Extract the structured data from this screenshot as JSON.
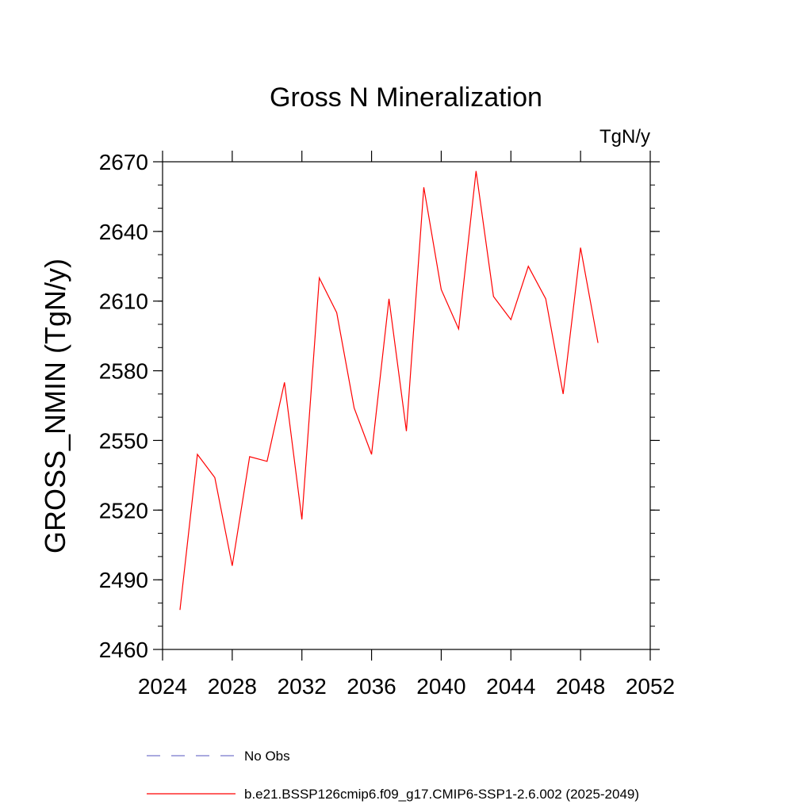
{
  "chart_data": {
    "type": "line",
    "title": "Gross N Mineralization",
    "units": "TgN/y",
    "ylabel": "GROSS_NMIN  (TgN/y)",
    "xlabel": "",
    "xlim": [
      2024,
      2052
    ],
    "ylim": [
      2460,
      2670
    ],
    "xticks": [
      2024,
      2028,
      2032,
      2036,
      2040,
      2044,
      2048,
      2052
    ],
    "yticks": [
      2460,
      2490,
      2520,
      2550,
      2580,
      2610,
      2640,
      2670
    ],
    "grid": false,
    "legend_position": "bottom",
    "series": [
      {
        "name": "No Obs",
        "color": "#7777cc",
        "dash": "dashed",
        "x": [],
        "values": []
      },
      {
        "name": "b.e21.BSSP126cmip6.f09_g17.CMIP6-SSP1-2.6.002 (2025-2049)",
        "color": "#ff0000",
        "dash": "solid",
        "x": [
          2025,
          2026,
          2027,
          2028,
          2029,
          2030,
          2031,
          2032,
          2033,
          2034,
          2035,
          2036,
          2037,
          2038,
          2039,
          2040,
          2041,
          2042,
          2043,
          2044,
          2045,
          2046,
          2047,
          2048,
          2049
        ],
        "values": [
          2477,
          2544,
          2534,
          2496,
          2543,
          2541,
          2575,
          2516,
          2620,
          2605,
          2564,
          2544,
          2611,
          2554,
          2659,
          2615,
          2598,
          2666,
          2612,
          2602,
          2625,
          2611,
          2570,
          2633,
          2592
        ]
      }
    ]
  }
}
